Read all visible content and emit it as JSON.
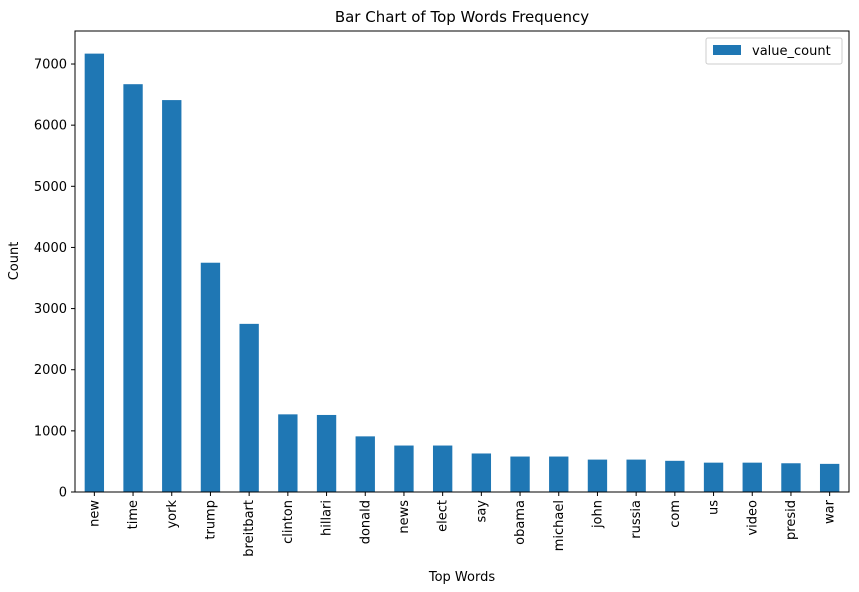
{
  "chart_data": {
    "type": "bar",
    "title": "Bar Chart of Top Words Frequency",
    "xlabel": "Top Words",
    "ylabel": "Count",
    "categories": [
      "new",
      "time",
      "york",
      "trump",
      "breitbart",
      "clinton",
      "hillari",
      "donald",
      "news",
      "elect",
      "say",
      "obama",
      "michael",
      "john",
      "russia",
      "com",
      "us",
      "video",
      "presid",
      "war"
    ],
    "series": [
      {
        "name": "value_count",
        "values": [
          7170,
          6670,
          6410,
          3750,
          2750,
          1270,
          1260,
          910,
          760,
          760,
          630,
          580,
          580,
          530,
          530,
          510,
          480,
          480,
          470,
          460
        ]
      }
    ],
    "ylim": [
      0,
      7540
    ],
    "yticks": [
      0,
      1000,
      2000,
      3000,
      4000,
      5000,
      6000,
      7000
    ],
    "grid": false,
    "legend": "top-right",
    "color": "#1f77b4"
  }
}
